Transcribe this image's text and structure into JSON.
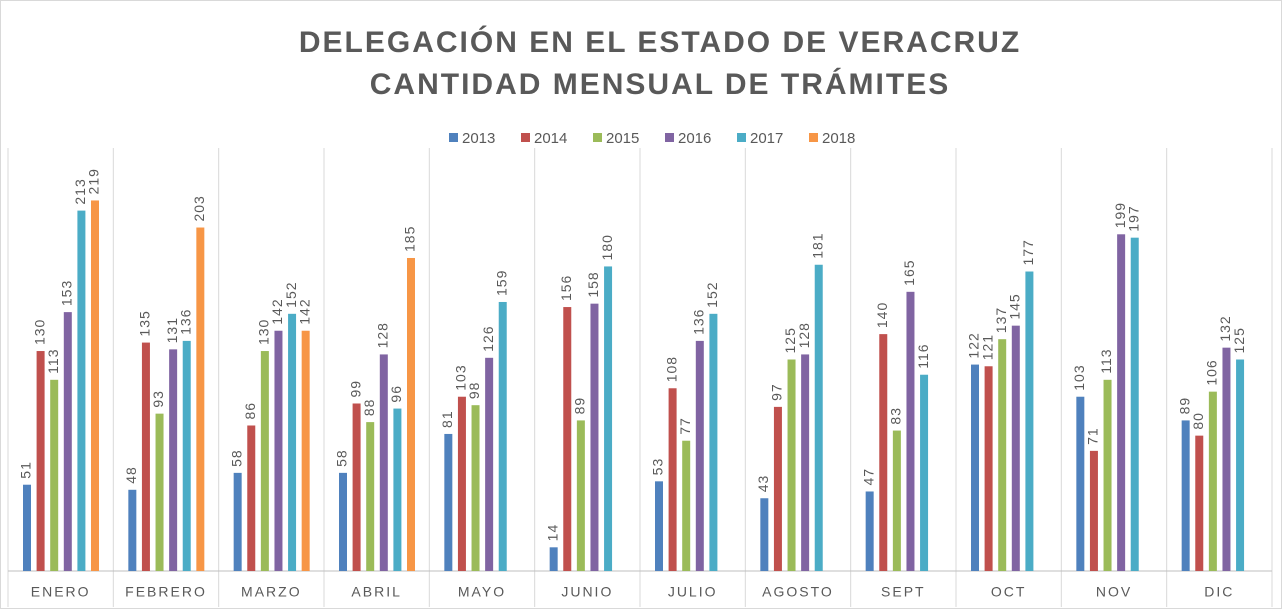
{
  "chart_data": {
    "type": "bar",
    "title": "DELEGACIÓN EN EL ESTADO DE VERACRUZ",
    "subtitle": "CANTIDAD MENSUAL DE TRÁMITES",
    "categories": [
      "ENERO",
      "FEBRERO",
      "MARZO",
      "ABRIL",
      "MAYO",
      "JUNIO",
      "JULIO",
      "AGOSTO",
      "SEPT",
      "OCT",
      "NOV",
      "DIC"
    ],
    "series": [
      {
        "name": "2013",
        "color": "#4f81bd",
        "values": [
          51,
          48,
          58,
          58,
          81,
          14,
          53,
          43,
          47,
          122,
          103,
          89
        ]
      },
      {
        "name": "2014",
        "color": "#c0504d",
        "values": [
          130,
          135,
          86,
          99,
          103,
          156,
          108,
          97,
          140,
          121,
          71,
          80
        ]
      },
      {
        "name": "2015",
        "color": "#9bbb59",
        "values": [
          113,
          93,
          130,
          88,
          98,
          89,
          77,
          125,
          83,
          137,
          113,
          106
        ]
      },
      {
        "name": "2016",
        "color": "#8064a2",
        "values": [
          153,
          131,
          142,
          128,
          126,
          158,
          136,
          128,
          165,
          145,
          199,
          132
        ]
      },
      {
        "name": "2017",
        "color": "#4bacc6",
        "values": [
          213,
          136,
          152,
          96,
          159,
          180,
          152,
          181,
          116,
          177,
          197,
          125
        ]
      },
      {
        "name": "2018",
        "color": "#f79646",
        "values": [
          219,
          203,
          142,
          185,
          null,
          null,
          null,
          null,
          null,
          null,
          null,
          null
        ]
      }
    ],
    "ylim": [
      0,
      250
    ],
    "legend": "top"
  }
}
